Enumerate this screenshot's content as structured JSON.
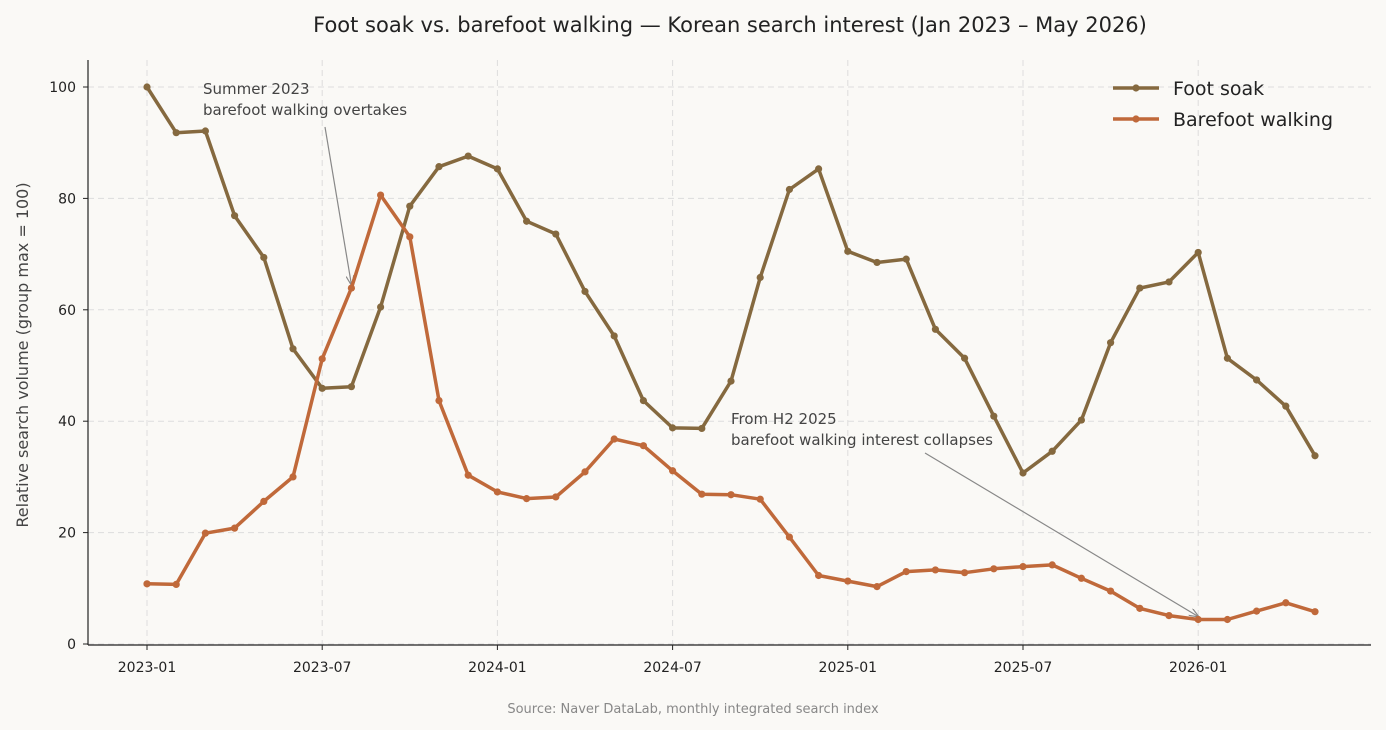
{
  "chart_data": {
    "type": "line",
    "title": "Foot soak vs. barefoot walking — Korean search interest (Jan 2023 – May 2026)",
    "ylabel": "Relative search volume (group max = 100)",
    "xlabel": "",
    "ylim": [
      0,
      100
    ],
    "yticks": [
      "0",
      "20",
      "40",
      "60",
      "80",
      "100"
    ],
    "xtick_labels": [
      "2023-01",
      "2023-07",
      "2024-01",
      "2024-07",
      "2025-01",
      "2025-07",
      "2026-01"
    ],
    "x": [
      "2023-01",
      "2023-02",
      "2023-03",
      "2023-04",
      "2023-05",
      "2023-06",
      "2023-07",
      "2023-08",
      "2023-09",
      "2023-10",
      "2023-11",
      "2023-12",
      "2024-01",
      "2024-02",
      "2024-03",
      "2024-04",
      "2024-05",
      "2024-06",
      "2024-07",
      "2024-08",
      "2024-09",
      "2024-10",
      "2024-11",
      "2024-12",
      "2025-01",
      "2025-02",
      "2025-03",
      "2025-04",
      "2025-05",
      "2025-06",
      "2025-07",
      "2025-08",
      "2025-09",
      "2025-10",
      "2025-11",
      "2025-12",
      "2026-01",
      "2026-02",
      "2026-03",
      "2026-04",
      "2026-05"
    ],
    "series": [
      {
        "name": "Foot soak",
        "color": "#85693f",
        "values": [
          100,
          91.8,
          92.1,
          76.9,
          69.4,
          53.0,
          45.9,
          46.2,
          60.5,
          78.6,
          85.7,
          87.6,
          85.3,
          75.9,
          73.6,
          63.3,
          55.3,
          43.7,
          38.8,
          38.7,
          47.2,
          65.8,
          81.6,
          85.3,
          70.5,
          68.5,
          69.1,
          56.5,
          51.3,
          40.9,
          30.7,
          34.6,
          40.2,
          54.1,
          63.9,
          65.0,
          70.3,
          51.3,
          47.4,
          42.7,
          33.8
        ]
      },
      {
        "name": "Barefoot walking",
        "color": "#c0693a",
        "values": [
          10.8,
          10.7,
          19.9,
          20.8,
          25.6,
          30.0,
          51.2,
          63.9,
          80.6,
          73.1,
          43.7,
          30.3,
          27.3,
          26.1,
          26.4,
          30.9,
          36.8,
          35.6,
          31.1,
          26.9,
          26.8,
          26.0,
          19.2,
          12.3,
          11.3,
          10.3,
          13.0,
          13.3,
          12.8,
          13.5,
          13.9,
          14.2,
          11.8,
          9.5,
          6.4,
          5.1,
          4.4,
          4.4,
          5.9,
          7.4,
          5.8
        ]
      }
    ],
    "grid": true,
    "legend_position": "top-right",
    "annotations": [
      {
        "lines": [
          "Summer 2023",
          "barefoot walking overtakes"
        ],
        "points_to": {
          "x": "2023-08",
          "y": 64
        }
      },
      {
        "lines": [
          "From H2 2025",
          "barefoot walking interest collapses"
        ],
        "points_to": {
          "x": "2026-01",
          "y": 4.4
        }
      }
    ],
    "source": "Source: Naver DataLab, monthly integrated search index"
  }
}
